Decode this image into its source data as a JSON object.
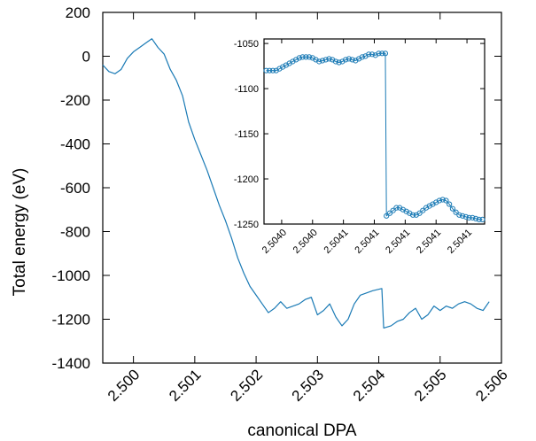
{
  "chart_data": [
    {
      "type": "line",
      "title": "",
      "xlabel": "canonical DPA",
      "ylabel": "Total energy (eV)",
      "xlim": [
        2.4995,
        2.506
      ],
      "ylim": [
        -1400,
        200
      ],
      "x_ticks": [
        2.5,
        2.501,
        2.502,
        2.503,
        2.504,
        2.505,
        2.506
      ],
      "x_tick_labels": [
        "2.500",
        "2.501",
        "2.502",
        "2.503",
        "2.504",
        "2.505",
        "2.506"
      ],
      "y_ticks": [
        200,
        0,
        -200,
        -400,
        -600,
        -800,
        -1000,
        -1200,
        -1400
      ],
      "y_tick_labels": [
        "200",
        "0",
        "-200",
        "-400",
        "-600",
        "-800",
        "-1000",
        "-1200",
        "-1400"
      ],
      "grid": false,
      "legend": "none",
      "color": "#1a7ab5",
      "series": [
        {
          "x": [
            2.4995,
            2.4996,
            2.4997,
            2.4998,
            2.4999,
            2.5,
            2.5001,
            2.5002,
            2.5003,
            2.5004,
            2.5005,
            2.5006,
            2.5007,
            2.5008,
            2.5009,
            2.501,
            2.5011,
            2.5012,
            2.5013,
            2.5014,
            2.5015,
            2.5016,
            2.5017,
            2.5018,
            2.5019,
            2.502,
            2.5021,
            2.5022,
            2.5023,
            2.5024,
            2.5025,
            2.5026,
            2.5027,
            2.5028,
            2.5029,
            2.503,
            2.5031,
            2.5032,
            2.5033,
            2.5034,
            2.5035,
            2.5036,
            2.5037,
            2.5038,
            2.5039,
            2.50405,
            2.50408,
            2.5042,
            2.5043,
            2.5044,
            2.5045,
            2.5046,
            2.5047,
            2.5048,
            2.5049,
            2.505,
            2.5051,
            2.5052,
            2.5053,
            2.5054,
            2.5055,
            2.5056,
            2.5057,
            2.5058
          ],
          "values": [
            -40,
            -70,
            -80,
            -60,
            -10,
            20,
            40,
            60,
            80,
            40,
            10,
            -60,
            -110,
            -180,
            -300,
            -380,
            -450,
            -520,
            -600,
            -680,
            -750,
            -830,
            -920,
            -990,
            -1050,
            -1090,
            -1130,
            -1170,
            -1150,
            -1120,
            -1150,
            -1140,
            -1130,
            -1110,
            -1100,
            -1180,
            -1160,
            -1130,
            -1190,
            -1230,
            -1200,
            -1130,
            -1090,
            -1080,
            -1070,
            -1060,
            -1240,
            -1230,
            -1210,
            -1200,
            -1170,
            -1150,
            -1200,
            -1180,
            -1140,
            -1160,
            -1140,
            -1150,
            -1130,
            -1120,
            -1130,
            -1150,
            -1160,
            -1120
          ]
        }
      ]
    },
    {
      "type": "line",
      "title": "",
      "xlabel": "",
      "ylabel": "",
      "xlim": [
        0,
        1
      ],
      "ylim": [
        -1250,
        -1045
      ],
      "x_ticks": [
        0.08,
        0.22,
        0.36,
        0.5,
        0.64,
        0.78,
        0.92
      ],
      "x_tick_labels": [
        "2.5040",
        "2.5040",
        "2.5041",
        "2.5041",
        "2.5041",
        "2.5041",
        "2.5041"
      ],
      "y_ticks": [
        -1050,
        -1100,
        -1150,
        -1200,
        -1250
      ],
      "y_tick_labels": [
        "-1050",
        "-1100",
        "-1150",
        "-1200",
        "-1250"
      ],
      "grid": false,
      "legend": "none",
      "color": "#1a7ab5",
      "marker": "circle",
      "series": [
        {
          "x": [
            0.01,
            0.025,
            0.04,
            0.055,
            0.07,
            0.085,
            0.1,
            0.115,
            0.13,
            0.145,
            0.16,
            0.175,
            0.19,
            0.205,
            0.22,
            0.235,
            0.25,
            0.265,
            0.28,
            0.295,
            0.31,
            0.325,
            0.34,
            0.355,
            0.37,
            0.385,
            0.4,
            0.415,
            0.43,
            0.445,
            0.46,
            0.475,
            0.49,
            0.505,
            0.52,
            0.535,
            0.55,
            0.555,
            0.57,
            0.585,
            0.6,
            0.615,
            0.63,
            0.645,
            0.66,
            0.675,
            0.69,
            0.705,
            0.72,
            0.735,
            0.75,
            0.765,
            0.78,
            0.795,
            0.81,
            0.825,
            0.84,
            0.855,
            0.87,
            0.885,
            0.9,
            0.915,
            0.93,
            0.945,
            0.96,
            0.975,
            0.99
          ],
          "values": [
            -1080,
            -1080,
            -1080,
            -1080,
            -1078,
            -1076,
            -1074,
            -1072,
            -1070,
            -1068,
            -1066,
            -1065,
            -1065,
            -1065,
            -1066,
            -1068,
            -1070,
            -1069,
            -1068,
            -1067,
            -1068,
            -1070,
            -1071,
            -1070,
            -1068,
            -1067,
            -1068,
            -1069,
            -1067,
            -1065,
            -1064,
            -1062,
            -1062,
            -1063,
            -1061,
            -1061,
            -1061,
            -1241,
            -1238,
            -1235,
            -1232,
            -1232,
            -1234,
            -1236,
            -1238,
            -1240,
            -1240,
            -1238,
            -1235,
            -1232,
            -1230,
            -1228,
            -1226,
            -1224,
            -1223,
            -1224,
            -1228,
            -1233,
            -1237,
            -1240,
            -1241,
            -1242,
            -1243,
            -1243,
            -1244,
            -1245,
            -1245
          ]
        }
      ]
    }
  ]
}
